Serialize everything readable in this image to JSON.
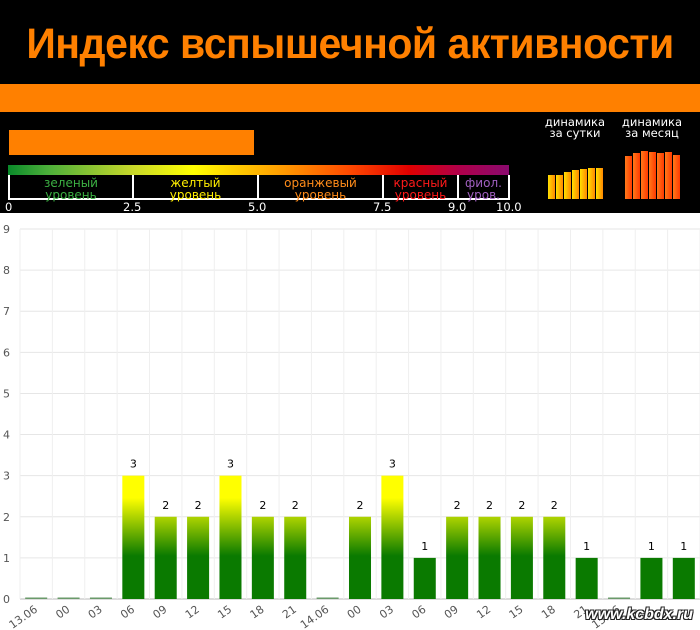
{
  "title": "Индекс вспышечной активности",
  "colors": {
    "header_bg": "#000000",
    "title": "#ff8000",
    "band": "#ff8000",
    "index_bar": "#ff8000"
  },
  "index_value": 4.9,
  "scale": {
    "levels": [
      {
        "line1": "зеленый",
        "line2": "уровень",
        "color": "#3cb043"
      },
      {
        "line1": "желтый",
        "line2": "уровень",
        "color": "#ffee00"
      },
      {
        "line1": "оранжевый",
        "line2": "уровень",
        "color": "#ff8c1a"
      },
      {
        "line1": "красный",
        "line2": "уровень",
        "color": "#ff1a1a"
      },
      {
        "line1": "фиол.",
        "line2": "уров.",
        "color": "#a060c0"
      }
    ],
    "ticks": [
      "0",
      "2.5",
      "5.0",
      "7.5",
      "9.0",
      "10.0"
    ]
  },
  "dynamics": {
    "day_label": [
      "динамика",
      "за сутки"
    ],
    "month_label": [
      "динамика",
      "за месяц"
    ],
    "day_values": [
      2.3,
      2.3,
      2.6,
      2.8,
      2.9,
      3.0,
      3.0
    ],
    "month_values": [
      4.5,
      4.8,
      5.0,
      4.9,
      4.8,
      4.9,
      4.6
    ],
    "day_color": [
      "#ffe000",
      "#ff8800"
    ],
    "month_color": [
      "#ff7a1a",
      "#ff3a00"
    ]
  },
  "chart_data": {
    "type": "bar",
    "ylim": [
      0,
      9
    ],
    "yticks": [
      "0",
      "1",
      "2",
      "3",
      "4",
      "5",
      "6",
      "7",
      "8",
      "9"
    ],
    "categories": [
      "13.06",
      "00",
      "03",
      "06",
      "09",
      "12",
      "15",
      "18",
      "21",
      "14.06",
      "00",
      "03",
      "06",
      "09",
      "12",
      "15",
      "18",
      "21",
      "15.06",
      "",
      ""
    ],
    "values": [
      0,
      0,
      0,
      3,
      2,
      2,
      3,
      2,
      2,
      0,
      2,
      3,
      1,
      2,
      2,
      2,
      2,
      1,
      0,
      1,
      1
    ],
    "data_labels": [
      "",
      "",
      "",
      "3",
      "2",
      "2",
      "3",
      "2",
      "2",
      "",
      "2",
      "3",
      "1",
      "2",
      "2",
      "2",
      "2",
      "1",
      "",
      "1",
      "1"
    ],
    "grid": true,
    "legend": "none",
    "bar_gradient": [
      "#ffff00",
      "#0a7a00"
    ]
  },
  "watermark": "www.kcbdx.ru"
}
